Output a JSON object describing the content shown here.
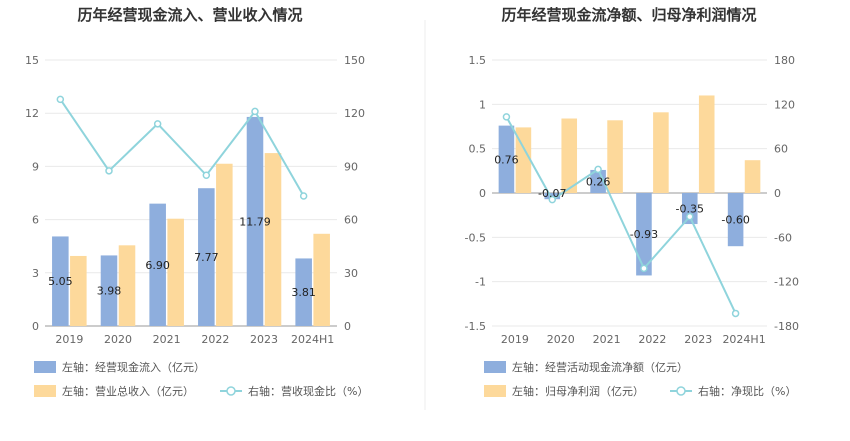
{
  "chart_data": [
    {
      "type": "bar",
      "title": "历年经营现金流入、营业收入情况",
      "categories": [
        "2019",
        "2020",
        "2021",
        "2022",
        "2023",
        "2024H1"
      ],
      "left_axis": {
        "ticks": [
          "0",
          "3",
          "6",
          "9",
          "12",
          "15"
        ],
        "ylim": [
          0,
          15
        ]
      },
      "right_axis": {
        "ticks": [
          "0",
          "30",
          "60",
          "90",
          "120",
          "150"
        ],
        "ylim": [
          0,
          150
        ]
      },
      "series": [
        {
          "name": "左轴：经营现金流入（亿元）",
          "type": "bar",
          "axis": "left",
          "color": "#8eaedd",
          "values": [
            5.05,
            3.98,
            6.9,
            7.77,
            11.79,
            3.81
          ],
          "labels": [
            "5.05",
            "3.98",
            "6.90",
            "7.77",
            "11.79",
            "3.81"
          ]
        },
        {
          "name": "左轴：营业总收入（亿元）",
          "type": "bar",
          "axis": "left",
          "color": "#fdd99b",
          "values": [
            3.95,
            4.55,
            6.05,
            9.15,
            9.75,
            5.2
          ]
        },
        {
          "name": "右轴：营收现金比（%）",
          "type": "line",
          "axis": "right",
          "color": "#8fd4dc",
          "values": [
            127.8,
            87.5,
            114.0,
            85.0,
            121.0,
            73.3
          ]
        }
      ],
      "legend_position": "bottom",
      "grid": true
    },
    {
      "type": "bar",
      "title": "历年经营现金流净额、归母净利润情况",
      "categories": [
        "2019",
        "2020",
        "2021",
        "2022",
        "2023",
        "2024H1"
      ],
      "left_axis": {
        "ticks": [
          "-1.5",
          "-1",
          "-0.5",
          "0",
          "0.5",
          "1",
          "1.5"
        ],
        "ylim": [
          -1.5,
          1.5
        ]
      },
      "right_axis": {
        "ticks": [
          "-180",
          "-120",
          "-60",
          "0",
          "60",
          "120",
          "180"
        ],
        "ylim": [
          -180,
          180
        ]
      },
      "series": [
        {
          "name": "左轴：经营活动现金流净额（亿元）",
          "type": "bar",
          "axis": "left",
          "color": "#8eaedd",
          "values": [
            0.76,
            -0.07,
            0.26,
            -0.93,
            -0.35,
            -0.6
          ],
          "labels": [
            "0.76",
            "-0.07",
            "0.26",
            "-0.93",
            "-0.35",
            "-0.60"
          ]
        },
        {
          "name": "左轴：归母净利润（亿元）",
          "type": "bar",
          "axis": "left",
          "color": "#fdd99b",
          "values": [
            0.74,
            0.84,
            0.82,
            0.91,
            1.1,
            0.37
          ]
        },
        {
          "name": "右轴：净现比（%）",
          "type": "line",
          "axis": "right",
          "color": "#8fd4dc",
          "values": [
            103.0,
            -9.0,
            32.0,
            -102.0,
            -32.0,
            -163.0
          ]
        }
      ],
      "legend_position": "bottom",
      "grid": true
    }
  ]
}
